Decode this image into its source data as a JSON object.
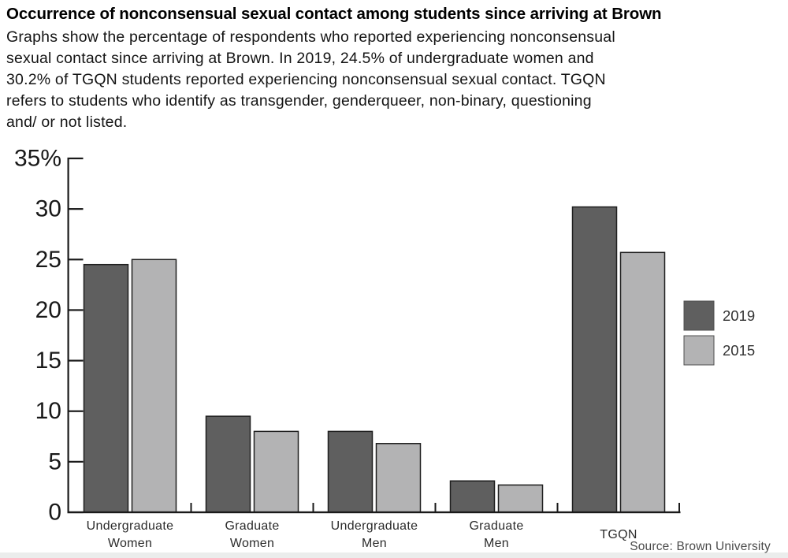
{
  "header": {
    "title": "Occurrence of nonconsensual sexual contact among students since arriving at Brown",
    "description": "Graphs show the percentage of respondents who reported experiencing nonconsensual\nsexual contact since arriving at Brown. In 2019, 24.5% of undergraduate women and\n30.2% of TGQN students reported experiencing nonconsensual sexual contact. TGQN\nrefers to students who identify as transgender, genderqueer, non-binary, questioning\nand/ or not listed."
  },
  "chart_data": {
    "type": "bar",
    "title": "Occurrence of nonconsensual sexual contact among students since arriving at Brown",
    "categories": [
      "Undergraduate Women",
      "Graduate Women",
      "Undergraduate Men",
      "Graduate Men",
      "TGQN"
    ],
    "series": [
      {
        "name": "2019",
        "color": "#5f5f5f",
        "values": [
          24.5,
          9.5,
          8.0,
          3.1,
          30.2
        ]
      },
      {
        "name": "2015",
        "color": "#b3b3b4",
        "values": [
          25.0,
          8.0,
          6.8,
          2.7,
          25.7
        ]
      }
    ],
    "xlabel": "",
    "ylabel": "",
    "ylim": [
      0,
      35
    ],
    "yticks": [
      {
        "value": 0,
        "label": "0"
      },
      {
        "value": 5,
        "label": "5"
      },
      {
        "value": 10,
        "label": "10"
      },
      {
        "value": 15,
        "label": "15"
      },
      {
        "value": 20,
        "label": "20"
      },
      {
        "value": 25,
        "label": "25"
      },
      {
        "value": 30,
        "label": "30"
      },
      {
        "value": 35,
        "label": "35%"
      }
    ],
    "grid": false,
    "legend_position": "right",
    "colors": {
      "axis": "#1a1a1a",
      "bar_border": "#1f1f1f",
      "tick_label": "#191919",
      "category_label": "#2b2b2b",
      "legend_label": "#333333"
    }
  },
  "footer": {
    "source": "Source: Brown University"
  }
}
